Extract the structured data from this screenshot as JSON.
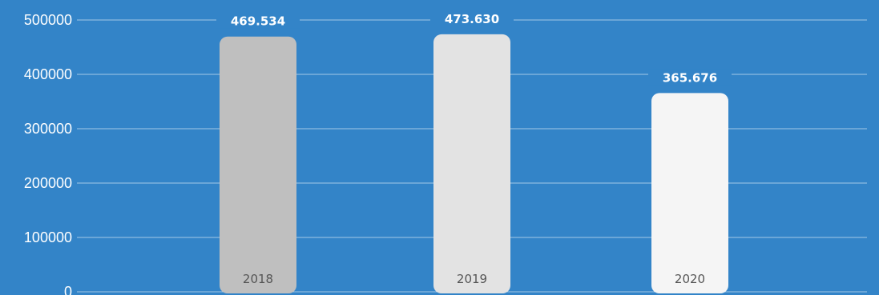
{
  "chart_data": {
    "type": "bar",
    "categories": [
      "2018",
      "2019",
      "2020"
    ],
    "values": [
      469534,
      473630,
      365676
    ],
    "value_labels": [
      "469.534",
      "473.630",
      "365.676"
    ],
    "ylim": [
      0,
      500000
    ],
    "yticks": [
      "0",
      "100000",
      "200000",
      "300000",
      "400000",
      "500000"
    ],
    "ytick_values": [
      0,
      100000,
      200000,
      300000,
      400000,
      500000
    ],
    "grid": true,
    "background_color": "#3384c8",
    "bar_colors": [
      "#bfbfbf",
      "#e3e3e3",
      "#f5f5f5"
    ]
  }
}
